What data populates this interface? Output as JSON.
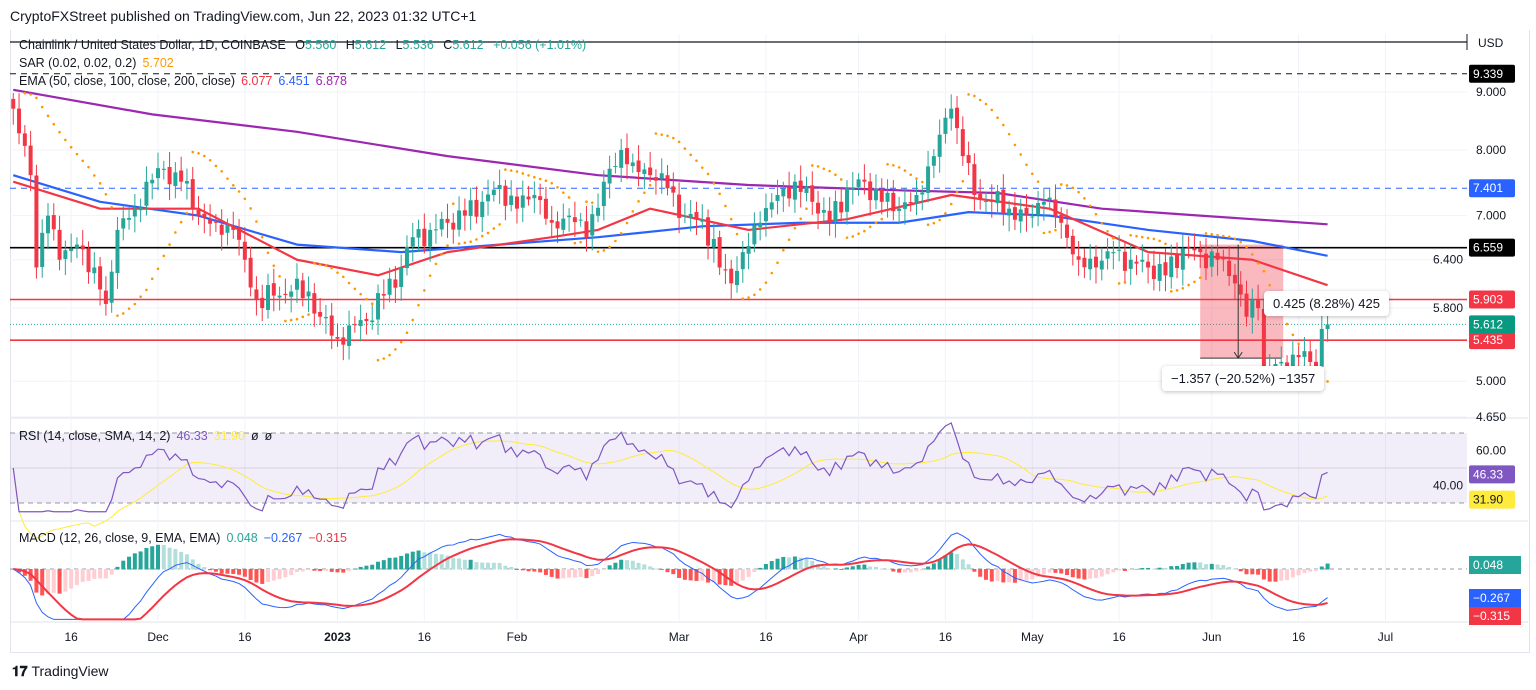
{
  "publisher_line": "CryptoFXStreet published on TradingView.com, Jun 22, 2023 01:32 UTC+1",
  "brand": "TradingView",
  "legend": {
    "symbol": "Chainlink / United States Dollar, 1D, COINBASE",
    "o_label": "O",
    "o": "5.560",
    "h_label": "H",
    "h": "5.612",
    "l_label": "L",
    "l": "5.536",
    "c_label": "C",
    "c": "5.612",
    "change": "+0.056 (+1.01%)",
    "sar": "SAR (0.02, 0.02, 0.2)",
    "sar_value": "5.702",
    "ema": "EMA (50, close, 100, close, 200, close)",
    "ema50": "6.077",
    "ema100": "6.451",
    "ema200": "6.878",
    "rsi": "RSI (14, close, SMA, 14, 2)",
    "rsi_value": "46.33",
    "rsi_sma": "31.90",
    "rsi_na1": "ø",
    "rsi_na2": "ø",
    "macd": "MACD (12, 26, close, 9, EMA, EMA)",
    "macd_hist": "0.048",
    "macd_line": "−0.267",
    "macd_signal": "−0.315"
  },
  "colors": {
    "up": "#26a69a",
    "down": "#f23645",
    "ema50": "#f23645",
    "ema100": "#2962ff",
    "ema200": "#9c27b0",
    "sar": "#ff9800",
    "rsi": "#7e57c2",
    "rsi_sma": "#ffeb3b"
  },
  "chart_data": {
    "type": "candlestick",
    "currency": "USD",
    "y_scale": "log",
    "price_ticks": [
      "9.000",
      "8.000",
      "7.000",
      "6.400",
      "5.800",
      "5.000",
      "4.650"
    ],
    "x_ticks": [
      [
        "2022-11-16",
        "16"
      ],
      [
        "2022-12-01",
        "Dec"
      ],
      [
        "2022-12-16",
        "16"
      ],
      [
        "2023-01-01",
        "2023"
      ],
      [
        "2023-01-16",
        "16"
      ],
      [
        "2023-02-01",
        "Feb"
      ],
      [
        "2023-03-01",
        "Mar"
      ],
      [
        "2023-03-16",
        "16"
      ],
      [
        "2023-04-01",
        "Apr"
      ],
      [
        "2023-04-16",
        "16"
      ],
      [
        "2023-05-01",
        "May"
      ],
      [
        "2023-05-16",
        "16"
      ],
      [
        "2023-06-01",
        "Jun"
      ],
      [
        "2023-06-16",
        "16"
      ],
      [
        "2023-07-01",
        "Jul"
      ]
    ],
    "closes": [
      [
        "2022-11-06",
        8.7
      ],
      [
        "2022-11-09",
        7.6
      ],
      [
        "2022-11-10",
        6.3
      ],
      [
        "2022-11-12",
        7.0
      ],
      [
        "2022-11-14",
        6.4
      ],
      [
        "2022-11-17",
        6.6
      ],
      [
        "2022-11-20",
        6.3
      ],
      [
        "2022-11-22",
        5.85
      ],
      [
        "2022-11-24",
        6.8
      ],
      [
        "2022-11-27",
        7.1
      ],
      [
        "2022-11-29",
        7.5
      ],
      [
        "2022-12-02",
        7.7
      ],
      [
        "2022-12-05",
        7.5
      ],
      [
        "2022-12-08",
        7.0
      ],
      [
        "2022-12-11",
        6.9
      ],
      [
        "2022-12-14",
        6.8
      ],
      [
        "2022-12-16",
        6.4
      ],
      [
        "2022-12-18",
        5.9
      ],
      [
        "2022-12-21",
        5.95
      ],
      [
        "2022-12-24",
        6.0
      ],
      [
        "2022-12-27",
        6.0
      ],
      [
        "2022-12-29",
        5.7
      ],
      [
        "2023-01-01",
        5.45
      ],
      [
        "2023-01-03",
        5.6
      ],
      [
        "2023-01-06",
        5.65
      ],
      [
        "2023-01-09",
        5.95
      ],
      [
        "2023-01-12",
        6.3
      ],
      [
        "2023-01-14",
        6.7
      ],
      [
        "2023-01-17",
        6.8
      ],
      [
        "2023-01-20",
        6.9
      ],
      [
        "2023-01-23",
        7.0
      ],
      [
        "2023-01-26",
        7.2
      ],
      [
        "2023-01-29",
        7.45
      ],
      [
        "2023-02-01",
        7.1
      ],
      [
        "2023-02-04",
        7.3
      ],
      [
        "2023-02-07",
        6.9
      ],
      [
        "2023-02-10",
        7.0
      ],
      [
        "2023-02-13",
        6.7
      ],
      [
        "2023-02-16",
        7.5
      ],
      [
        "2023-02-19",
        8.0
      ],
      [
        "2023-02-21",
        7.8
      ],
      [
        "2023-02-24",
        7.6
      ],
      [
        "2023-02-27",
        7.4
      ],
      [
        "2023-03-02",
        7.0
      ],
      [
        "2023-03-05",
        6.95
      ],
      [
        "2023-03-08",
        6.3
      ],
      [
        "2023-03-10",
        6.1
      ],
      [
        "2023-03-12",
        6.5
      ],
      [
        "2023-03-15",
        6.9
      ],
      [
        "2023-03-18",
        7.3
      ],
      [
        "2023-03-21",
        7.5
      ],
      [
        "2023-03-24",
        7.2
      ],
      [
        "2023-03-27",
        6.9
      ],
      [
        "2023-03-30",
        7.4
      ],
      [
        "2023-04-02",
        7.5
      ],
      [
        "2023-04-05",
        7.2
      ],
      [
        "2023-04-08",
        7.1
      ],
      [
        "2023-04-11",
        7.3
      ],
      [
        "2023-04-14",
        7.9
      ],
      [
        "2023-04-17",
        8.7
      ],
      [
        "2023-04-19",
        7.9
      ],
      [
        "2023-04-21",
        7.3
      ],
      [
        "2023-04-24",
        7.2
      ],
      [
        "2023-04-27",
        7.1
      ],
      [
        "2023-04-30",
        7.0
      ],
      [
        "2023-05-03",
        7.2
      ],
      [
        "2023-05-06",
        6.9
      ],
      [
        "2023-05-09",
        6.4
      ],
      [
        "2023-05-12",
        6.3
      ],
      [
        "2023-05-15",
        6.5
      ],
      [
        "2023-05-18",
        6.4
      ],
      [
        "2023-05-21",
        6.3
      ],
      [
        "2023-05-24",
        6.2
      ],
      [
        "2023-05-27",
        6.55
      ],
      [
        "2023-05-30",
        6.5
      ],
      [
        "2023-06-02",
        6.4
      ],
      [
        "2023-06-05",
        6.1
      ],
      [
        "2023-06-07",
        5.7
      ],
      [
        "2023-06-09",
        5.8
      ],
      [
        "2023-06-10",
        5.1
      ],
      [
        "2023-06-13",
        5.2
      ],
      [
        "2023-06-16",
        5.25
      ],
      [
        "2023-06-19",
        5.15
      ],
      [
        "2023-06-20",
        5.56
      ],
      [
        "2023-06-21",
        5.612
      ]
    ],
    "ema200": [
      [
        "2022-11-06",
        9.04
      ],
      [
        "2022-11-30",
        8.6
      ],
      [
        "2022-12-25",
        8.3
      ],
      [
        "2023-01-20",
        7.9
      ],
      [
        "2023-02-15",
        7.6
      ],
      [
        "2023-03-13",
        7.45
      ],
      [
        "2023-04-08",
        7.37
      ],
      [
        "2023-04-25",
        7.33
      ],
      [
        "2023-05-13",
        7.1
      ],
      [
        "2023-05-30",
        7.0
      ],
      [
        "2023-06-21",
        6.878
      ]
    ],
    "ema100": [
      [
        "2022-11-06",
        7.6
      ],
      [
        "2022-11-21",
        7.2
      ],
      [
        "2022-12-08",
        7.0
      ],
      [
        "2022-12-25",
        6.6
      ],
      [
        "2023-01-12",
        6.5
      ],
      [
        "2023-01-29",
        6.6
      ],
      [
        "2023-02-15",
        6.7
      ],
      [
        "2023-03-05",
        6.85
      ],
      [
        "2023-03-22",
        6.9
      ],
      [
        "2023-04-08",
        6.9
      ],
      [
        "2023-04-20",
        7.05
      ],
      [
        "2023-05-04",
        7.0
      ],
      [
        "2023-05-21",
        6.8
      ],
      [
        "2023-06-08",
        6.65
      ],
      [
        "2023-06-21",
        6.451
      ]
    ],
    "ema50": [
      [
        "2022-11-06",
        7.5
      ],
      [
        "2022-11-21",
        7.1
      ],
      [
        "2022-12-08",
        7.1
      ],
      [
        "2022-12-25",
        6.4
      ],
      [
        "2023-01-08",
        6.2
      ],
      [
        "2023-01-20",
        6.5
      ],
      [
        "2023-02-07",
        6.7
      ],
      [
        "2023-02-15",
        6.8
      ],
      [
        "2023-02-24",
        7.1
      ],
      [
        "2023-03-13",
        6.8
      ],
      [
        "2023-03-30",
        6.95
      ],
      [
        "2023-04-17",
        7.3
      ],
      [
        "2023-05-04",
        7.1
      ],
      [
        "2023-05-21",
        6.5
      ],
      [
        "2023-06-08",
        6.4
      ],
      [
        "2023-06-21",
        6.077
      ]
    ],
    "levels": [
      {
        "price": 9.339,
        "label": "9.339",
        "style": "dashed",
        "color": "#131722"
      },
      {
        "price": 7.401,
        "label": "7.401",
        "style": "dashed",
        "color": "#2962ff"
      },
      {
        "price": 6.559,
        "label": "6.559",
        "style": "solid",
        "color": "#000000"
      },
      {
        "price": 5.903,
        "label": "5.903",
        "style": "solid",
        "color": "#f23645"
      },
      {
        "price": 5.435,
        "label": "5.435",
        "style": "solid",
        "color": "#f23645"
      },
      {
        "price": 5.612,
        "label": "5.612",
        "style": "dotted",
        "color": "#26a69a"
      }
    ],
    "measure_down": {
      "label": "−1.357 (−20.52%) −1357",
      "from": "2023-05-30",
      "to": "2023-06-13",
      "high": 6.6,
      "low": 5.24
    },
    "measure_up": {
      "label": "0.425 (8.28%) 425"
    },
    "rsi_ticks": [
      "60.00",
      "40.00"
    ],
    "rsi_bands": [
      70,
      30
    ],
    "rsi_tags": {
      "rsi": "46.33",
      "sma": "31.90"
    },
    "macd_tags": {
      "hist": "0.048",
      "macd": "−0.267",
      "signal": "−0.315"
    }
  }
}
